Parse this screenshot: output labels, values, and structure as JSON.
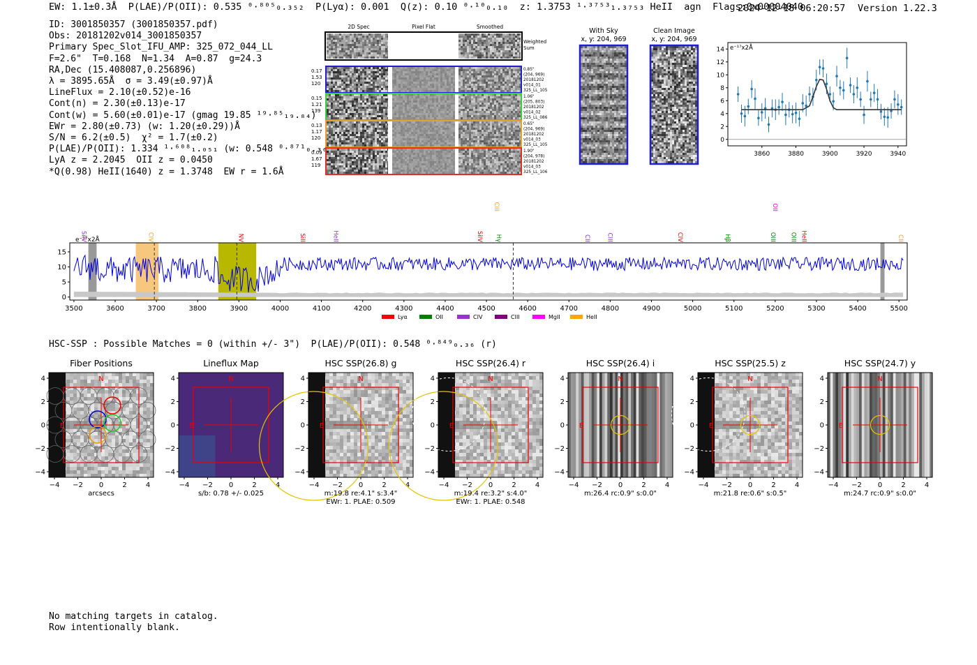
{
  "header": {
    "main_line": "EW: 1.1±0.3Å  P(LAE)/P(OII): 0.535 ⁰·⁸⁰⁵₀.₃₅₂  P(Lyα): 0.001  Q(z): 0.10 ⁰·¹⁰₀.₁₀  z: 1.3753 ¹·³⁷⁵³₁.₃₇₅₃ HeII  agn  Flags:0x00004040",
    "timestamp": "2024-12-18 06:20:57",
    "version": "Version 1.22.3"
  },
  "info_lines": [
    "ID: 3001850357 (3001850357.pdf)",
    "Obs: 20181202v014_3001850357",
    "Primary Spec_Slot_IFU_AMP: 325_072_044_LL",
    "F=2.6\"  T=0.168  N=1.34  A=0.87  g=24.3",
    "RA,Dec (15.408087,0.256896)",
    "λ = 3895.65Å  σ = 3.49(±0.97)Å",
    "LineFlux = 2.10(±0.52)e-16",
    "Cont(n) = 2.30(±0.13)e-17",
    "Cont(w) = 5.60(±0.01)e-17 (gmag 19.85 ¹⁹·⁸⁵₁₉.₈₄)",
    "EWr = 2.80(±0.73) (w: 1.20(±0.29))Å",
    "S/N = 6.2(±0.5)  χ² = 1.7(±0.2)",
    "P(LAE)/P(OII): 1.334 ¹·⁶⁰⁸₁.₀₅₁ (w: 0.548 ⁰·⁸⁷¹₀.₃₆₈)",
    "LyA z = 2.2045  OII z = 0.0450",
    "*Q(0.98) HeII(1640) z = 1.3748  EW r = 1.6Å"
  ],
  "cutouts": {
    "col_titles": [
      "2D Spec",
      "Pixel Flat",
      "Smoothed"
    ],
    "weighted_sum": "Weighted Sum",
    "rows": [
      {
        "left": [
          "0.17",
          "1.53",
          "120"
        ],
        "right": [
          "0.85\"",
          "(204, 969)",
          "20181202",
          "v014_01",
          "325_LL_105"
        ],
        "color": "#1f1fd0"
      },
      {
        "left": [
          "0.15",
          "1.21",
          "139"
        ],
        "right": [
          "1.06\"",
          "(205, 803)",
          "20181202",
          "v014_02",
          "325_LL_086"
        ],
        "color": "#3ad13a"
      },
      {
        "left": [
          "0.13",
          "1.17",
          "120"
        ],
        "right": [
          "0.65\"",
          "(204, 969)",
          "20181202",
          "v014_03",
          "325_LL_105"
        ],
        "color": "#e8a030"
      },
      {
        "left": [
          "0.09",
          "1.67",
          "119"
        ],
        "right": [
          "1.90\"",
          "(204, 978)",
          "20181202",
          "v014_03",
          "325_LL_106"
        ],
        "color": "#e03020"
      }
    ]
  },
  "sky": {
    "with_sky_title": "With Sky",
    "clean_title": "Clean Image",
    "coord": "x, y: 204, 969"
  },
  "zoom_plot": {
    "unit_label": "e⁻¹⁷x2Å",
    "x_ticks": [
      "3860",
      "3880",
      "3900",
      "3920",
      "3940"
    ],
    "y_ticks": [
      "0",
      "2",
      "4",
      "6",
      "8",
      "10",
      "12",
      "14"
    ]
  },
  "full_spectrum": {
    "unit_label": "e⁻¹⁷x2Å",
    "x_ticks": [
      "3500",
      "3600",
      "3700",
      "3800",
      "3900",
      "4000",
      "4100",
      "4200",
      "4300",
      "4400",
      "4500",
      "4600",
      "4700",
      "4800",
      "4900",
      "5000",
      "5100",
      "5200",
      "5300",
      "5400",
      "5500"
    ],
    "y_ticks": [
      "0",
      "5",
      "10",
      "15"
    ],
    "line_labels": [
      {
        "text": "SiIV",
        "w": 3520,
        "color": "#8a2be2",
        "row": 1
      },
      {
        "text": "CIV",
        "w": 3682,
        "color": "#f0a020",
        "row": 1
      },
      {
        "text": "NV",
        "w": 3900,
        "color": "#e00000",
        "row": 1
      },
      {
        "text": "SiII",
        "w": 4050,
        "color": "#e00000",
        "row": 1
      },
      {
        "text": "HeII",
        "w": 4130,
        "color": "#8a2be2",
        "row": 1
      },
      {
        "text": "SiIV",
        "w": 4480,
        "color": "#e00000",
        "row": 1
      },
      {
        "text": "CIII",
        "w": 4520,
        "color": "#f0a020",
        "row": 0
      },
      {
        "text": "Hγ",
        "w": 4525,
        "color": "#008000",
        "row": 1
      },
      {
        "text": "CII",
        "w": 4740,
        "color": "#8a2be2",
        "row": 1
      },
      {
        "text": "CIII",
        "w": 4795,
        "color": "#8a2be2",
        "row": 1
      },
      {
        "text": "CIV",
        "w": 4965,
        "color": "#e00000",
        "row": 1
      },
      {
        "text": "Hβ",
        "w": 5080,
        "color": "#008000",
        "row": 1
      },
      {
        "text": "OII",
        "w": 5195,
        "color": "#e000e0",
        "row": 0
      },
      {
        "text": "OIII",
        "w": 5190,
        "color": "#008000",
        "row": 1
      },
      {
        "text": "OIII",
        "w": 5240,
        "color": "#008000",
        "row": 1
      },
      {
        "text": "HeII",
        "w": 5265,
        "color": "#e00000",
        "row": 1
      },
      {
        "text": "CII",
        "w": 5500,
        "color": "#f0a020",
        "row": 1
      }
    ],
    "legend": [
      {
        "label": "Lyα",
        "color": "#ff0000"
      },
      {
        "label": "OII",
        "color": "#008000"
      },
      {
        "label": "CIV",
        "color": "#9932cc"
      },
      {
        "label": "CIII",
        "color": "#800080"
      },
      {
        "label": "MgII",
        "color": "#ff00ff"
      },
      {
        "label": "HeII",
        "color": "#ffa500"
      }
    ]
  },
  "hsc": {
    "heading": "HSC-SSP : Possible Matches = 0 (within +/- 3\")  P(LAE)/P(OII): 0.548 ⁰·⁸⁴⁹₀.₃₆ (r)",
    "panels": [
      {
        "title": "Fiber Positions",
        "lines": [
          "arcsecs"
        ]
      },
      {
        "title": "Lineflux Map",
        "lines": [
          "s/b: 0.78 +/- 0.025"
        ]
      },
      {
        "title": "HSC SSP(26.8) g",
        "lines": [
          "m:19.8  re:4.1\"  s:3.4\"",
          "EWr: 1. PLAE: 0.509"
        ]
      },
      {
        "title": "HSC SSP(26.4) r",
        "lines": [
          "m:19.4  re:3.2\"  s:4.0\"",
          "EWr: 1. PLAE: 0.548"
        ]
      },
      {
        "title": "HSC SSP(26.4) i",
        "lines": [
          "m:26.4  rc:0.9\"  s:0.0\""
        ]
      },
      {
        "title": "HSC SSP(25.5) z",
        "lines": [
          "m:21.8  re:0.6\"  s:0.5\""
        ]
      },
      {
        "title": "HSC SSP(24.7) y",
        "lines": [
          "m:24.7  rc:0.9\"  s:0.0\""
        ]
      }
    ],
    "tick_labels_y": [
      "4",
      "2",
      "0",
      "−2",
      "−4"
    ],
    "tick_labels_x": [
      "−4",
      "−2",
      "0",
      "2",
      "4"
    ],
    "n_label": "N",
    "e_label": "E"
  },
  "footer": [
    "No matching targets in catalog.",
    "Row intentionally blank."
  ],
  "chart_data": [
    {
      "type": "line",
      "title": "",
      "xlabel": "",
      "ylabel": "e⁻¹⁷x2Å",
      "xlim": [
        3840,
        3945
      ],
      "ylim": [
        -1,
        15
      ],
      "series": [
        {
          "name": "",
          "kind": "points",
          "x": [
            3846,
            3848,
            3850,
            3852,
            3854,
            3856,
            3858,
            3860,
            3862,
            3864,
            3866,
            3868,
            3870,
            3872,
            3874,
            3876,
            3878,
            3880,
            3882,
            3884,
            3886,
            3888,
            3890,
            3892,
            3894,
            3896,
            3898,
            3900,
            3902,
            3904,
            3906,
            3908,
            3910,
            3912,
            3914,
            3916,
            3918,
            3920,
            3922,
            3924,
            3926,
            3928,
            3930,
            3932,
            3934,
            3936,
            3938,
            3940,
            3942
          ],
          "y": [
            7.0,
            4.0,
            3.6,
            5.1,
            7.8,
            6.3,
            3.3,
            4.2,
            4.8,
            2.3,
            4.8,
            4.6,
            5.0,
            5.8,
            3.8,
            4.6,
            3.9,
            4.1,
            3.2,
            5.6,
            5.2,
            7.0,
            6.6,
            9.2,
            11.2,
            11.0,
            8.6,
            7.0,
            5.9,
            9.8,
            8.0,
            7.6,
            12.6,
            8.4,
            7.0,
            8.0,
            6.2,
            3.8,
            9.0,
            6.2,
            7.2,
            6.2,
            4.3,
            3.5,
            3.4,
            4.4,
            6.2,
            5.4,
            5.0
          ]
        },
        {
          "name": "",
          "kind": "fit",
          "x": [
            3848,
            3884,
            3888,
            3890,
            3892,
            3894,
            3896,
            3898,
            3900,
            3902,
            3904,
            3942
          ],
          "y": [
            4.6,
            4.6,
            5.2,
            6.6,
            8.2,
            9.3,
            9.2,
            7.8,
            6.0,
            4.9,
            4.6,
            4.6
          ]
        }
      ]
    },
    {
      "type": "line",
      "title": "",
      "xlabel": "",
      "ylabel": "e⁻¹⁷x2Å",
      "xlim": [
        3490,
        5520
      ],
      "ylim": [
        -1,
        18
      ],
      "x_range_points": [
        3500,
        5520
      ],
      "note": "continuum spectrum ~10 units with noise; depression near 3800-3950"
    }
  ]
}
